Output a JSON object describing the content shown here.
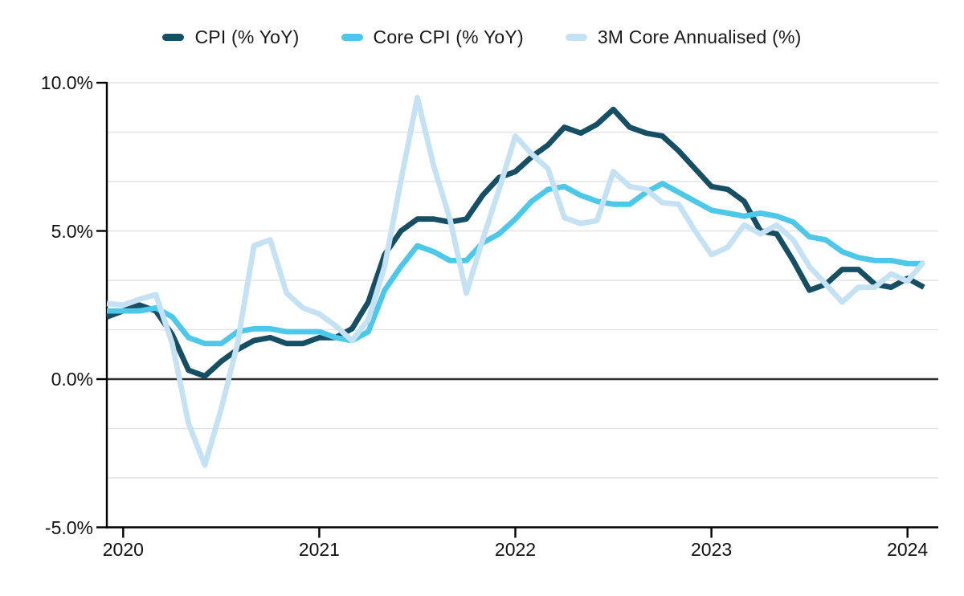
{
  "legend": {
    "items": [
      {
        "label": "CPI (% YoY)",
        "color": "#164f63"
      },
      {
        "label": "Core CPI (% YoY)",
        "color": "#4dc8e9"
      },
      {
        "label": "3M Core Annualised (%)",
        "color": "#c4e2f4"
      }
    ]
  },
  "chart_data": {
    "type": "line",
    "title": "",
    "xlabel": "",
    "ylabel": "",
    "x": [
      "2019-11",
      "2019-12",
      "2020-01",
      "2020-02",
      "2020-03",
      "2020-04",
      "2020-05",
      "2020-06",
      "2020-07",
      "2020-08",
      "2020-09",
      "2020-10",
      "2020-11",
      "2020-12",
      "2021-01",
      "2021-02",
      "2021-03",
      "2021-04",
      "2021-05",
      "2021-06",
      "2021-07",
      "2021-08",
      "2021-09",
      "2021-10",
      "2021-11",
      "2021-12",
      "2022-01",
      "2022-02",
      "2022-03",
      "2022-04",
      "2022-05",
      "2022-06",
      "2022-07",
      "2022-08",
      "2022-09",
      "2022-10",
      "2022-11",
      "2022-12",
      "2023-01",
      "2023-02",
      "2023-03",
      "2023-04",
      "2023-05",
      "2023-06",
      "2023-07",
      "2023-08",
      "2023-09",
      "2023-10",
      "2023-11",
      "2023-12",
      "2024-01"
    ],
    "series": [
      {
        "name": "CPI (% YoY)",
        "color": "#164f63",
        "values": [
          2.1,
          2.3,
          2.5,
          2.3,
          1.5,
          0.3,
          0.1,
          0.6,
          1.0,
          1.3,
          1.4,
          1.2,
          1.2,
          1.4,
          1.4,
          1.7,
          2.6,
          4.2,
          5.0,
          5.4,
          5.4,
          5.3,
          5.4,
          6.2,
          6.8,
          7.0,
          7.5,
          7.9,
          8.5,
          8.3,
          8.6,
          9.1,
          8.5,
          8.3,
          8.2,
          7.7,
          7.1,
          6.5,
          6.4,
          6.0,
          5.0,
          4.9,
          4.0,
          3.0,
          3.2,
          3.7,
          3.7,
          3.2,
          3.1,
          3.4,
          3.1
        ]
      },
      {
        "name": "Core CPI (% YoY)",
        "color": "#4dc8e9",
        "values": [
          2.3,
          2.3,
          2.3,
          2.4,
          2.1,
          1.4,
          1.2,
          1.2,
          1.6,
          1.7,
          1.7,
          1.6,
          1.6,
          1.6,
          1.4,
          1.3,
          1.6,
          3.0,
          3.8,
          4.5,
          4.3,
          4.0,
          4.0,
          4.6,
          4.9,
          5.4,
          6.0,
          6.4,
          6.5,
          6.2,
          6.0,
          5.9,
          5.9,
          6.3,
          6.6,
          6.3,
          6.0,
          5.7,
          5.6,
          5.5,
          5.6,
          5.5,
          5.3,
          4.8,
          4.7,
          4.3,
          4.1,
          4.0,
          4.0,
          3.9,
          3.9
        ]
      },
      {
        "name": "3M Core Annualised (%)",
        "color": "#c4e2f4",
        "values": [
          2.55,
          2.5,
          2.7,
          2.85,
          1.2,
          -1.5,
          -2.9,
          -1.0,
          1.2,
          4.5,
          4.7,
          2.9,
          2.4,
          2.2,
          1.8,
          1.3,
          2.0,
          3.8,
          6.7,
          9.5,
          7.2,
          5.4,
          2.9,
          4.7,
          6.4,
          8.2,
          7.6,
          7.1,
          5.45,
          5.25,
          5.35,
          7.0,
          6.5,
          6.4,
          5.95,
          5.9,
          5.0,
          4.2,
          4.45,
          5.2,
          4.9,
          5.2,
          4.7,
          3.8,
          3.2,
          2.6,
          3.1,
          3.1,
          3.55,
          3.3,
          3.95
        ]
      }
    ],
    "ylim": [
      -5,
      10
    ],
    "y_ticks": [
      10,
      5,
      0,
      -5
    ],
    "y_tick_labels": [
      "10.0%",
      "5.0%",
      "0.0%",
      "-5.0%"
    ],
    "x_tick_labels": [
      "2020",
      "2021",
      "2022",
      "2023",
      "2024"
    ],
    "x_tick_indices": [
      1,
      13,
      25,
      37,
      49
    ],
    "minor_gridline_values": [
      8.3333,
      6.6667,
      3.3333,
      1.6667,
      -1.6667,
      -3.3333
    ],
    "grid": "on",
    "legend_position": "top",
    "colors": {
      "gridline": "#e3e3e3",
      "zero_line": "#2d2d2d",
      "axis": "#000000",
      "text": "#111111"
    }
  }
}
